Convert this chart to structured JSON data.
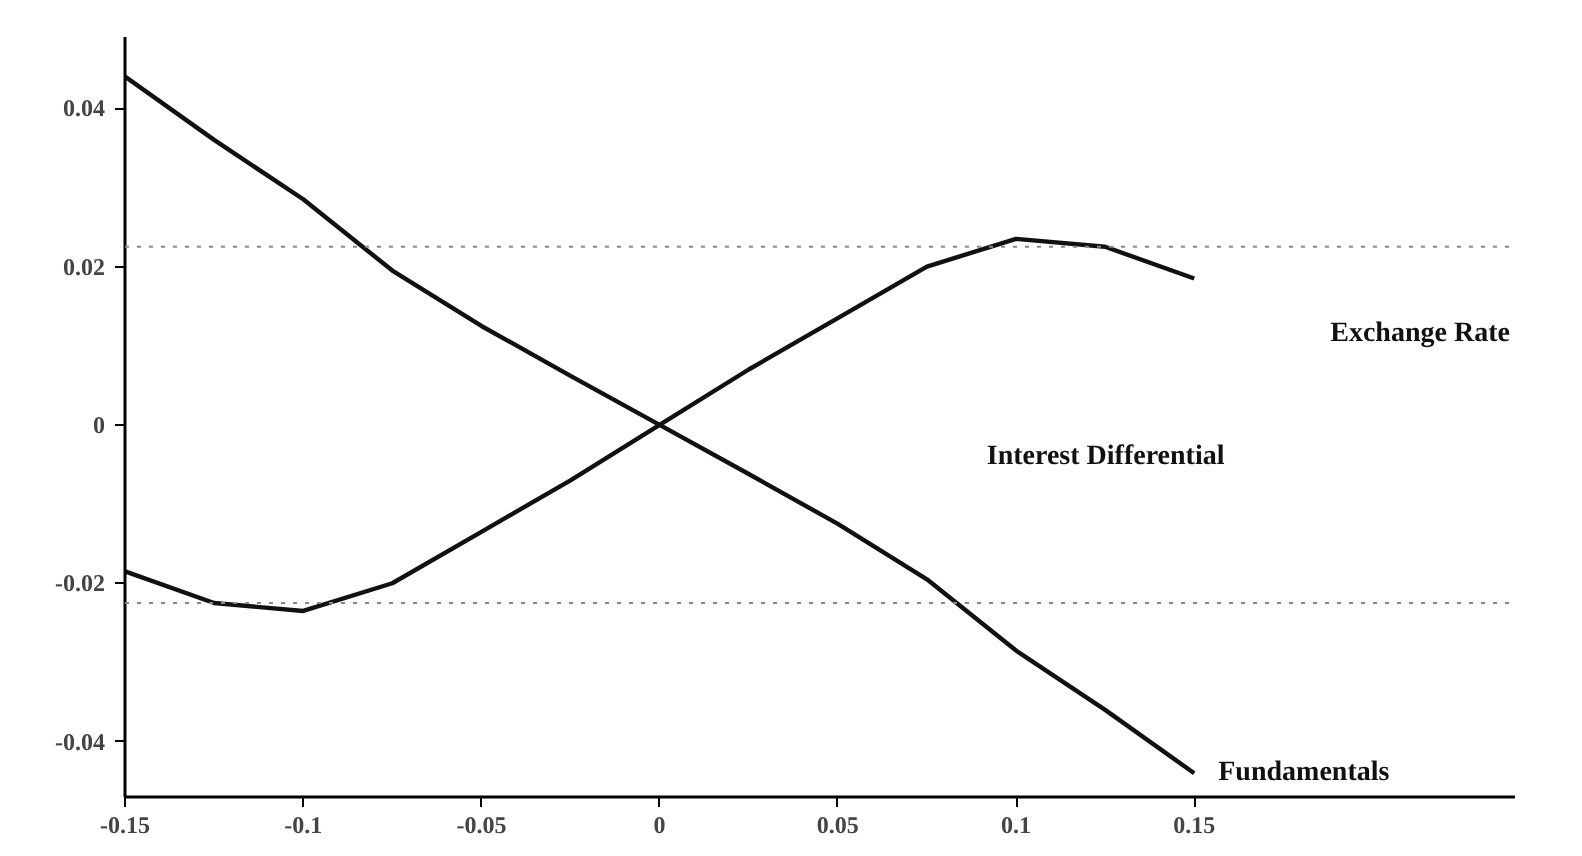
{
  "chart_data": {
    "type": "line",
    "x": [
      -0.15,
      -0.125,
      -0.1,
      -0.075,
      -0.05,
      -0.025,
      0,
      0.025,
      0.05,
      0.075,
      0.1,
      0.125,
      0.15
    ],
    "series": [
      {
        "name": "Fundamentals",
        "color": "#111111",
        "values": [
          0.044,
          0.036,
          0.0285,
          0.0195,
          0.0125,
          0.0062,
          0,
          -0.0062,
          -0.0125,
          -0.0195,
          -0.0285,
          -0.036,
          -0.044
        ]
      },
      {
        "name": "Exchange Rate",
        "color": "#111111",
        "values": [
          -0.0185,
          -0.0225,
          -0.0235,
          -0.02,
          -0.0135,
          -0.007,
          0,
          0.007,
          0.0135,
          0.02,
          0.0235,
          0.0225,
          0.0185
        ]
      }
    ],
    "xlim": [
      -0.15,
      0.24
    ],
    "xticks": [
      -0.15,
      -0.1,
      -0.05,
      0,
      0.05,
      0.1,
      0.15
    ],
    "ylim": [
      -0.047,
      0.049
    ],
    "yticks": [
      -0.04,
      -0.02,
      0,
      0.02,
      0.04
    ],
    "ref_lines": [
      {
        "axis": "y",
        "value": 0.0225,
        "color": "#888888",
        "line_style": "dotted"
      },
      {
        "axis": "y",
        "value": -0.0225,
        "color": "#888888",
        "line_style": "dotted"
      }
    ],
    "annotations": [
      "Interest Differential"
    ],
    "grid": false,
    "legend": false,
    "marker": "none",
    "line_style": "solid"
  }
}
